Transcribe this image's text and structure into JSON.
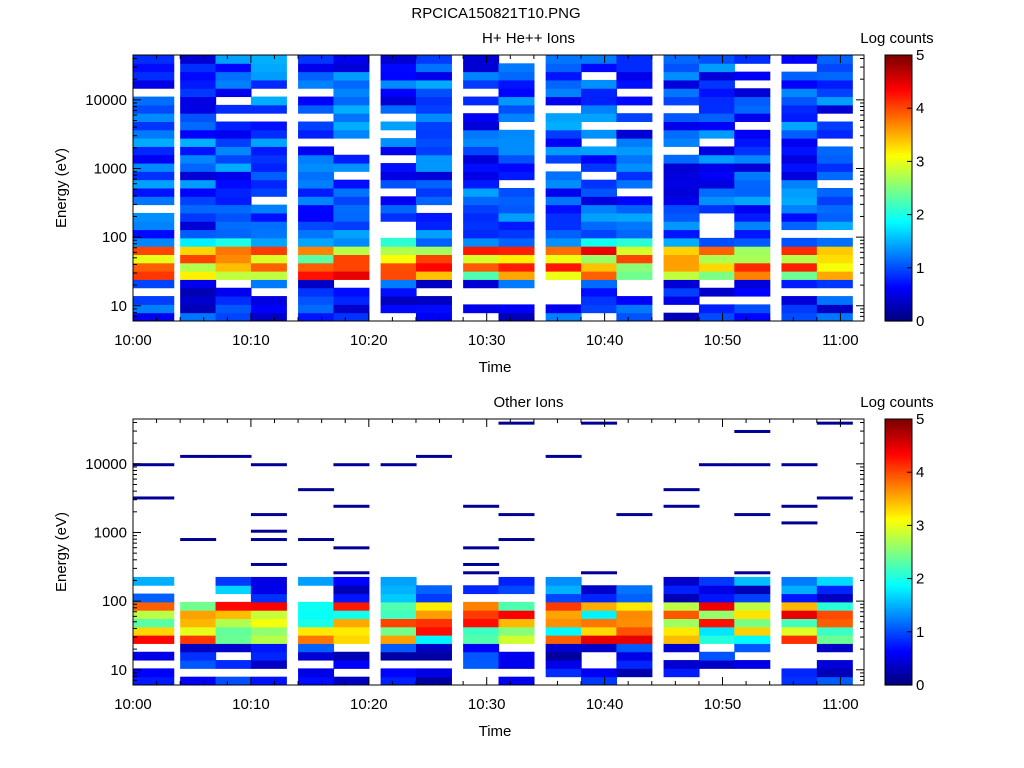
{
  "figure_title": "RPCICA150821T10.PNG",
  "chart_data": [
    {
      "type": "heatmap",
      "title": "H+ He++ Ions",
      "xlabel": "Time",
      "ylabel": "Energy (eV)",
      "yscale": "log",
      "ylim": [
        6,
        45000
      ],
      "xlim": [
        "10:00",
        "11:02"
      ],
      "x_ticks": [
        "10:00",
        "10:10",
        "10:20",
        "10:30",
        "10:40",
        "10:50",
        "11:00"
      ],
      "y_ticks": [
        "10",
        "100",
        "1000",
        "10000"
      ],
      "colorbar": {
        "label": "Log counts",
        "range": [
          0,
          5
        ],
        "ticks": [
          "0",
          "1",
          "2",
          "3",
          "4",
          "5"
        ],
        "colormap": "jet"
      },
      "column_times": [
        "10:00",
        "10:04",
        "10:07",
        "10:10",
        "10:14",
        "10:17",
        "10:21",
        "10:24",
        "10:28",
        "10:31",
        "10:35",
        "10:38",
        "10:41",
        "10:45",
        "10:48",
        "10:51",
        "10:55",
        "10:58"
      ],
      "grid": false
    },
    {
      "type": "heatmap",
      "title": "Other Ions",
      "xlabel": "Time",
      "ylabel": "Energy (eV)",
      "yscale": "log",
      "ylim": [
        6,
        45000
      ],
      "xlim": [
        "10:00",
        "11:02"
      ],
      "x_ticks": [
        "10:00",
        "10:10",
        "10:20",
        "10:30",
        "10:40",
        "10:50",
        "11:00"
      ],
      "y_ticks": [
        "10",
        "100",
        "1000",
        "10000"
      ],
      "colorbar": {
        "label": "Log counts",
        "range": [
          0,
          5
        ],
        "ticks": [
          "0",
          "1",
          "2",
          "3",
          "4",
          "5"
        ],
        "colormap": "jet"
      },
      "column_times": [
        "10:00",
        "10:04",
        "10:07",
        "10:10",
        "10:14",
        "10:17",
        "10:21",
        "10:24",
        "10:28",
        "10:31",
        "10:35",
        "10:38",
        "10:41",
        "10:45",
        "10:48",
        "10:51",
        "10:55",
        "10:58"
      ],
      "grid": false
    }
  ]
}
